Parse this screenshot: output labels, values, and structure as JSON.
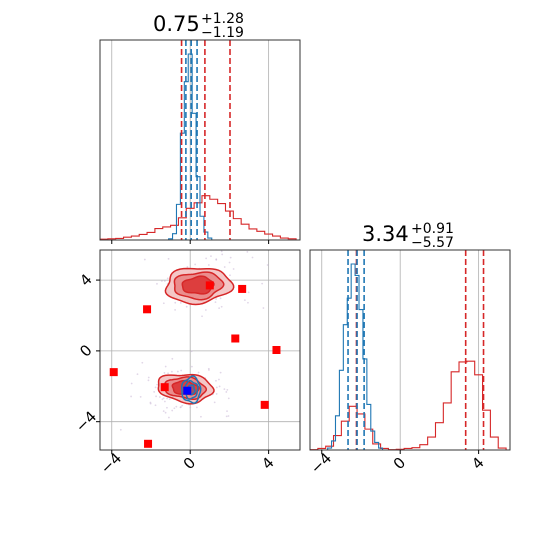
{
  "colors": {
    "red": "#d62728",
    "blue": "#1f77b4",
    "marker": "#ff0000",
    "marker_blue": "#0000ff",
    "grid": "#b0b0b0"
  },
  "chart_data": {
    "type": "corner",
    "titles": [
      {
        "text": "0.75",
        "sup": "+1.28",
        "sub": "−1.19"
      },
      {
        "text": "3.34",
        "sup": "+0.91",
        "sub": "−5.57"
      }
    ],
    "ticks": [
      {
        "value": -4,
        "label": "−4"
      },
      {
        "value": 0,
        "label": "0"
      },
      {
        "value": 4,
        "label": "4"
      }
    ],
    "xlim": [
      -4.6,
      5.6
    ],
    "ylim": [
      -5.6,
      5.7
    ],
    "grid": true,
    "marginal_x": {
      "series": [
        {
          "name": "red",
          "x": [
            -4.4,
            -4.0,
            -3.6,
            -3.2,
            -2.8,
            -2.4,
            -2.0,
            -1.6,
            -1.2,
            -0.8,
            -0.4,
            0.0,
            0.4,
            0.8,
            1.2,
            1.6,
            2.0,
            2.4,
            2.8,
            3.2,
            3.6,
            4.0,
            4.4,
            4.8,
            5.2
          ],
          "values": [
            0.2,
            0.3,
            0.4,
            0.7,
            1.0,
            1.4,
            1.9,
            2.9,
            3.3,
            3.7,
            5.6,
            8.0,
            9.4,
            11.2,
            10.3,
            9.2,
            7.3,
            5.4,
            4.0,
            2.8,
            2.2,
            1.5,
            1.0,
            0.5,
            0.3
          ],
          "quantiles": [
            -0.44,
            0.75,
            2.03
          ]
        },
        {
          "name": "blue",
          "x": [
            -1.0,
            -0.8,
            -0.6,
            -0.4,
            -0.2,
            0.0,
            0.2,
            0.4,
            0.6,
            0.8,
            1.0
          ],
          "values": [
            0.3,
            1.6,
            9.0,
            27.0,
            40.0,
            47.0,
            32.0,
            16.0,
            6.0,
            2.0,
            0.5
          ],
          "quantiles": [
            -0.22,
            0.05,
            0.35
          ]
        }
      ]
    },
    "marginal_y": {
      "series": [
        {
          "name": "red",
          "x": [
            -4.4,
            -4.0,
            -3.6,
            -3.2,
            -2.8,
            -2.4,
            -2.0,
            -1.6,
            -1.2,
            -0.8,
            -0.4,
            0.0,
            0.4,
            0.8,
            1.2,
            1.6,
            2.0,
            2.4,
            2.8,
            3.2,
            3.6,
            4.0,
            4.4,
            4.8,
            5.2
          ],
          "values": [
            0.1,
            0.4,
            1.0,
            3.8,
            7.6,
            11.5,
            9.5,
            5.5,
            1.6,
            0.4,
            0.1,
            0.2,
            0.4,
            0.6,
            1.4,
            3.4,
            7.2,
            12.4,
            20.6,
            23.2,
            23.4,
            19.8,
            10.5,
            3.4,
            0.5
          ],
          "quantiles": [
            -2.23,
            3.34,
            4.25
          ]
        },
        {
          "name": "blue",
          "x": [
            -3.6,
            -3.4,
            -3.2,
            -3.0,
            -2.8,
            -2.6,
            -2.4,
            -2.2,
            -2.0,
            -1.8,
            -1.6,
            -1.4,
            -1.2,
            -1.0
          ],
          "values": [
            0.5,
            2.4,
            9.0,
            21.0,
            33.0,
            40.0,
            49.0,
            46.0,
            37.0,
            24.0,
            12.0,
            5.0,
            2.0,
            0.5
          ],
          "quantiles": [
            -2.66,
            -2.2,
            -1.84
          ]
        }
      ]
    },
    "joint": {
      "red_density": [
        {
          "x": 0.4,
          "y": 3.7,
          "sx": 1.6,
          "sy": 0.95,
          "rot": -3
        },
        {
          "x": -0.25,
          "y": -2.1,
          "sx": 1.35,
          "sy": 0.75,
          "rot": 6
        }
      ],
      "blue_density": {
        "x": 0.05,
        "y": -2.2,
        "sx": 0.3,
        "sy": 0.45
      },
      "red_markers": [
        {
          "x": -3.9,
          "y": -1.2
        },
        {
          "x": -2.15,
          "y": -5.25
        },
        {
          "x": -2.2,
          "y": 2.35
        },
        {
          "x": 1.0,
          "y": 3.7
        },
        {
          "x": 2.65,
          "y": 3.5
        },
        {
          "x": 2.3,
          "y": 0.7
        },
        {
          "x": 4.4,
          "y": 0.05
        },
        {
          "x": 3.8,
          "y": -3.05
        },
        {
          "x": -1.3,
          "y": -2.05
        }
      ],
      "blue_markers": [
        {
          "x": -0.15,
          "y": -2.25
        }
      ]
    }
  }
}
